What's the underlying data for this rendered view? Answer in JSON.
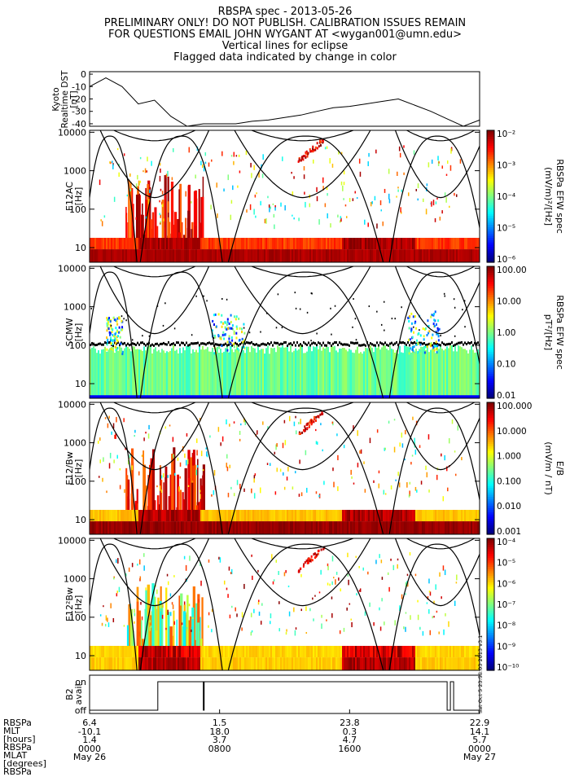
{
  "header": {
    "title": "RBSPA spec - 2013-05-26",
    "lines": [
      "PRELIMINARY ONLY! DO NOT PUBLISH. CALIBRATION ISSUES REMAIN",
      "FOR QUESTIONS EMAIL JOHN WYGANT AT <wygan001@umn.edu>",
      "Vertical lines for eclipse",
      "Flagged data indicated by change in color"
    ]
  },
  "chart_data": [
    {
      "type": "line",
      "panel": "dst",
      "ylabel_lines": [
        "Kyoto",
        "Realtime DST",
        "[nT]"
      ],
      "yticks": [
        0,
        -10,
        -20,
        -30,
        -40
      ],
      "ylim": [
        -42,
        2
      ],
      "x_hours": [
        0,
        1,
        2,
        3,
        4,
        5,
        6,
        7,
        8,
        9,
        10,
        11,
        12,
        13,
        14,
        15,
        16,
        17,
        18,
        19,
        20,
        21,
        22,
        23,
        24
      ],
      "values": [
        -10,
        -3,
        -10,
        -24,
        -21,
        -34,
        -42,
        -40,
        -40,
        -40,
        -38,
        -37,
        -35,
        -33,
        -30,
        -27,
        -26,
        -24,
        -22,
        -20,
        -25,
        -30,
        -36,
        -42,
        -37
      ]
    },
    {
      "type": "heatmap",
      "panel": "e12ac",
      "ylabel_lines": [
        "E12AC",
        "[Hz]"
      ],
      "cbar_label": "(mV/m)²/[Hz]",
      "cbar_sublabel": "RBSPa EFW spec",
      "cbar_ticks": [
        "10⁻²",
        "10⁻³",
        "10⁻⁴",
        "10⁻⁵",
        "10⁻⁶"
      ],
      "yticks": [
        "10000",
        "1000",
        "100",
        "10"
      ]
    },
    {
      "type": "heatmap",
      "panel": "scmw",
      "ylabel_lines": [
        "SCMW",
        "[Hz]"
      ],
      "cbar_label": "pT²/[Hz]",
      "cbar_sublabel": "RBSPa EFW spec",
      "cbar_ticks": [
        "100.00",
        "10.00",
        "1.00",
        "0.10",
        "0.01"
      ],
      "yticks": [
        "10000",
        "1000",
        "100",
        "10"
      ]
    },
    {
      "type": "heatmap",
      "panel": "e12bw1",
      "ylabel_lines": [
        "E12/Bw",
        "[Hz]"
      ],
      "cbar_label": "(mV/m / nT)",
      "cbar_sublabel": "E/B",
      "cbar_ticks": [
        "100.000",
        "10.000",
        "1.000",
        "0.100",
        "0.010",
        "0.001"
      ],
      "yticks": [
        "10000",
        "1000",
        "100",
        "10"
      ]
    },
    {
      "type": "heatmap",
      "panel": "e12bw2",
      "ylabel_lines": [
        "E12²Bw",
        "[Hz]"
      ],
      "cbar_label": "",
      "cbar_sublabel": "",
      "cbar_ticks": [
        "10⁻⁴",
        "10⁻⁵",
        "10⁻⁶",
        "10⁻⁷",
        "10⁻⁸",
        "10⁻⁹",
        "10⁻¹⁰"
      ],
      "yticks": [
        "10000",
        "1000",
        "100",
        "10"
      ]
    },
    {
      "type": "line",
      "panel": "b2",
      "ylabel_lines": [
        "B2",
        "avail"
      ],
      "yticks": [
        "on",
        "off"
      ],
      "side_text": "Sat Oct 5 23:58:03 2013 v3.1"
    }
  ],
  "footer": {
    "labels": [
      "RBSPa",
      "MLT",
      "[hours]",
      "RBSPa",
      "MLAT",
      "[degrees]",
      "RBSPa"
    ],
    "columns": [
      {
        "hour": 0,
        "rows": [
          "6.4",
          "-10.1",
          "1.4",
          "0000",
          "May 26"
        ]
      },
      {
        "hour": 8,
        "rows": [
          "1.5",
          "18.0",
          "3.7",
          "0800",
          ""
        ]
      },
      {
        "hour": 16,
        "rows": [
          "23.8",
          "0.3",
          "4.7",
          "1600",
          ""
        ]
      },
      {
        "hour": 24,
        "rows": [
          "22.9",
          "14.1",
          "5.7",
          "0000",
          "May 27"
        ]
      }
    ]
  },
  "colors": {
    "frame": "#000000",
    "background": "#ffffff"
  }
}
